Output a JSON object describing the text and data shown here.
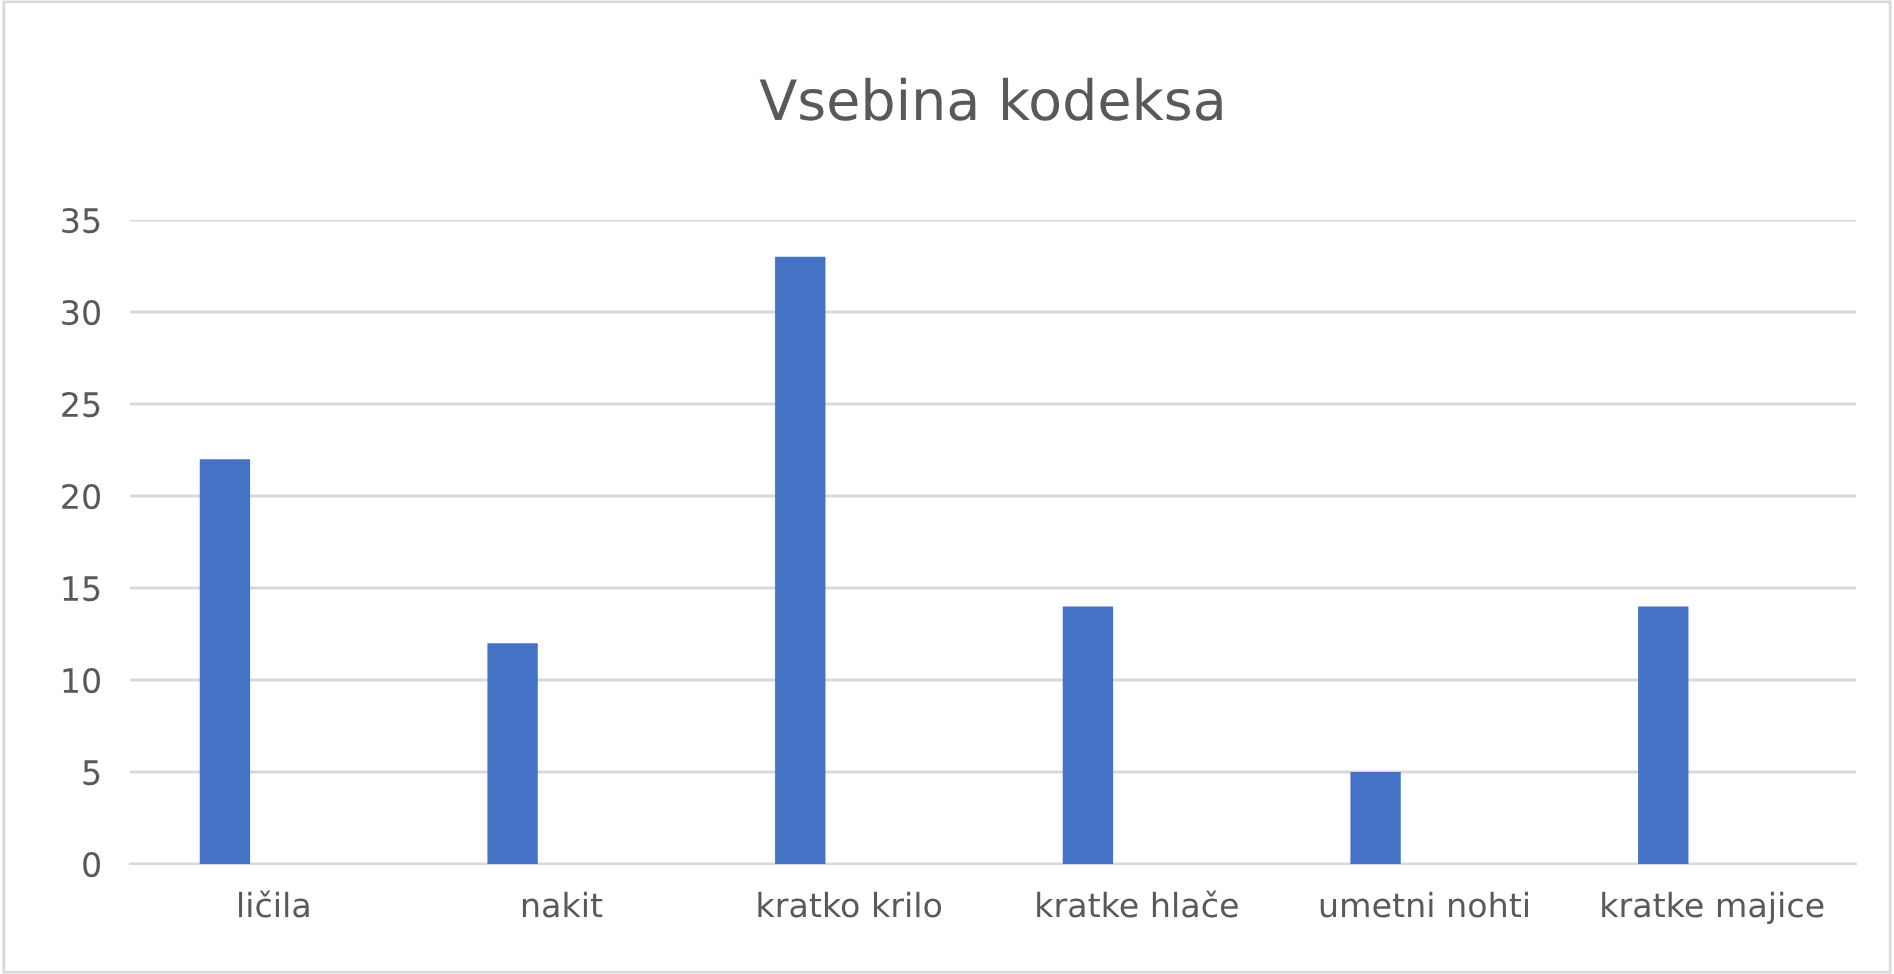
{
  "chart_data": {
    "type": "bar",
    "title": "Vsebina kodeksa",
    "categories": [
      "ličila",
      "nakit",
      "kratko krilo",
      "kratke hlače",
      "umetni nohti",
      "kratke majice"
    ],
    "values": [
      22,
      12,
      33,
      14,
      5,
      14
    ],
    "color": "#4472c4",
    "ylim": [
      0,
      35
    ],
    "yticks": [
      0,
      5,
      10,
      15,
      20,
      25,
      30,
      35
    ],
    "grid": "y"
  }
}
